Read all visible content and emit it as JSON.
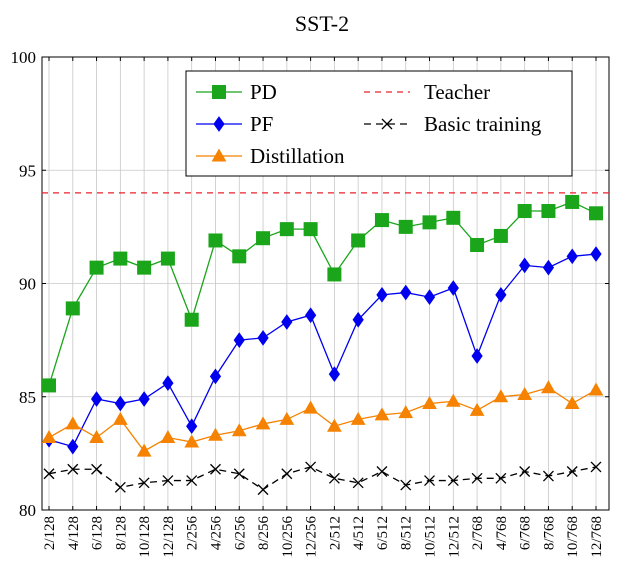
{
  "chart_data": {
    "type": "line",
    "title": "SST-2",
    "xlabel": "",
    "ylabel": "",
    "ylim": [
      80,
      100
    ],
    "yticks": [
      "80",
      "85",
      "90",
      "95",
      "100"
    ],
    "categories": [
      "2/128",
      "4/128",
      "6/128",
      "8/128",
      "10/128",
      "12/128",
      "2/256",
      "4/256",
      "6/256",
      "8/256",
      "10/256",
      "12/256",
      "2/512",
      "4/512",
      "6/512",
      "8/512",
      "10/512",
      "12/512",
      "2/768",
      "4/768",
      "6/768",
      "8/768",
      "10/768",
      "12/768"
    ],
    "grid": true,
    "legend_position": "top-right",
    "series": [
      {
        "name": "PD",
        "color": "#1aa51a",
        "marker": "square",
        "style": "solid",
        "values": [
          85.5,
          88.9,
          90.7,
          91.1,
          90.7,
          91.1,
          88.4,
          91.9,
          91.2,
          92.0,
          92.4,
          92.4,
          90.4,
          91.9,
          92.8,
          92.5,
          92.7,
          92.9,
          91.7,
          92.1,
          93.2,
          93.2,
          93.6,
          93.1
        ]
      },
      {
        "name": "PF",
        "color": "#0000ee",
        "marker": "diamond",
        "style": "solid",
        "values": [
          83.1,
          82.8,
          84.9,
          84.7,
          84.9,
          85.6,
          83.7,
          85.9,
          87.5,
          87.6,
          88.3,
          88.6,
          86.0,
          88.4,
          89.5,
          89.6,
          89.4,
          89.8,
          86.8,
          89.5,
          90.8,
          90.7,
          91.2,
          91.3
        ]
      },
      {
        "name": "Distillation",
        "color": "#f58200",
        "marker": "triangle",
        "style": "solid",
        "values": [
          83.2,
          83.8,
          83.2,
          84.0,
          82.6,
          83.2,
          83.0,
          83.3,
          83.5,
          83.8,
          84.0,
          84.5,
          83.7,
          84.0,
          84.2,
          84.3,
          84.7,
          84.8,
          84.4,
          85.0,
          85.1,
          85.4,
          84.7,
          85.3
        ]
      },
      {
        "name": "Teacher",
        "color": "#e8232d",
        "marker": "none",
        "style": "dashed",
        "values": [
          94.0,
          94.0,
          94.0,
          94.0,
          94.0,
          94.0,
          94.0,
          94.0,
          94.0,
          94.0,
          94.0,
          94.0,
          94.0,
          94.0,
          94.0,
          94.0,
          94.0,
          94.0,
          94.0,
          94.0,
          94.0,
          94.0,
          94.0,
          94.0
        ]
      },
      {
        "name": "Basic training",
        "color": "#000000",
        "marker": "cross",
        "style": "dashed",
        "values": [
          81.6,
          81.8,
          81.8,
          81.0,
          81.2,
          81.3,
          81.3,
          81.8,
          81.6,
          80.9,
          81.6,
          81.9,
          81.4,
          81.2,
          81.7,
          81.1,
          81.3,
          81.3,
          81.4,
          81.4,
          81.7,
          81.5,
          81.7,
          81.9
        ]
      }
    ]
  }
}
